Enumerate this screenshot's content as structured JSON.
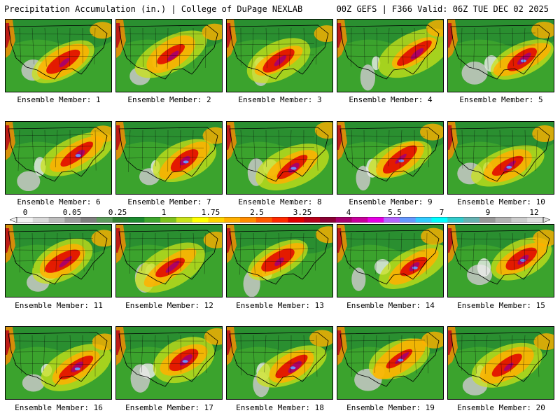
{
  "header": {
    "title": "Precipitation Accumulation (in.) | College of DuPage NEXLAB",
    "run_info": "00Z GEFS | F366 Valid: 06Z TUE DEC 02 2025"
  },
  "panels": [
    {
      "label": "Ensemble Member: 1"
    },
    {
      "label": "Ensemble Member: 2"
    },
    {
      "label": "Ensemble Member: 3"
    },
    {
      "label": "Ensemble Member: 4"
    },
    {
      "label": "Ensemble Member: 5"
    },
    {
      "label": "Ensemble Member: 6"
    },
    {
      "label": "Ensemble Member: 7"
    },
    {
      "label": "Ensemble Member: 8"
    },
    {
      "label": "Ensemble Member: 9"
    },
    {
      "label": "Ensemble Member: 10"
    },
    {
      "label": "Ensemble Member: 11"
    },
    {
      "label": "Ensemble Member: 12"
    },
    {
      "label": "Ensemble Member: 13"
    },
    {
      "label": "Ensemble Member: 14"
    },
    {
      "label": "Ensemble Member: 15"
    },
    {
      "label": "Ensemble Member: 16"
    },
    {
      "label": "Ensemble Member: 17"
    },
    {
      "label": "Ensemble Member: 18"
    },
    {
      "label": "Ensemble Member: 19"
    },
    {
      "label": "Ensemble Member: 20"
    }
  ],
  "colorbar": {
    "labels": [
      "0",
      "0.05",
      "0.25",
      "1",
      "1.75",
      "2.5",
      "3.25",
      "4",
      "5.5",
      "7",
      "9",
      "12"
    ],
    "colors": [
      "#f2f2f2",
      "#d9d9d9",
      "#bdbdbd",
      "#9e9e9e",
      "#7f7f7f",
      "#5e9c5e",
      "#2f7d32",
      "#1b8a2e",
      "#3da52d",
      "#7fc21f",
      "#c9e21a",
      "#ffff00",
      "#ffd400",
      "#ffb000",
      "#ff8c00",
      "#ff5a00",
      "#ff2a00",
      "#e00000",
      "#b8001a",
      "#8a0033",
      "#a6006e",
      "#c8009c",
      "#e600e6",
      "#b366ff",
      "#6699ff",
      "#33ccff",
      "#00ffff",
      "#33cccc",
      "#66b2b2",
      "#999999",
      "#b3b3b3",
      "#cccccc",
      "#e0e0e0"
    ]
  }
}
